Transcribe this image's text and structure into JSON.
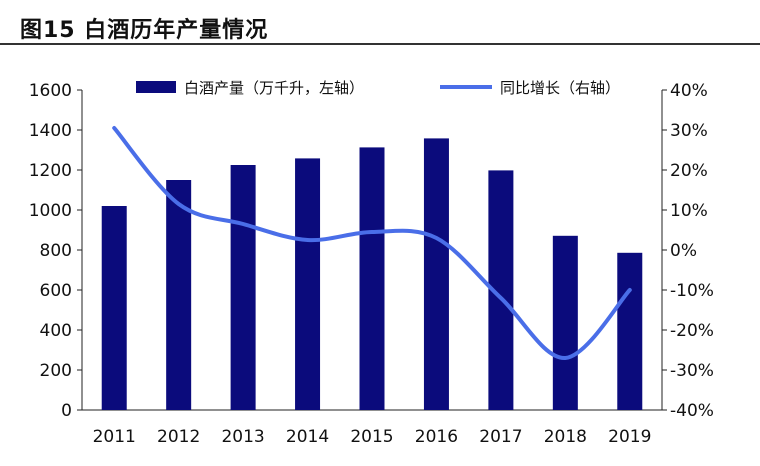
{
  "title": "图15 白酒历年产量情况",
  "chart_data": {
    "type": "bar+line",
    "categories": [
      "2011",
      "2012",
      "2013",
      "2014",
      "2015",
      "2016",
      "2017",
      "2018",
      "2019"
    ],
    "series": [
      {
        "name": "白酒产量（万千升，左轴）",
        "type": "bar",
        "axis": "left",
        "values": [
          1020,
          1150,
          1225,
          1258,
          1313,
          1358,
          1198,
          871,
          786
        ]
      },
      {
        "name": "同比增长（右轴）",
        "type": "line",
        "axis": "right",
        "values": [
          30.5,
          11.5,
          6.5,
          2.5,
          4.5,
          3.0,
          -12.0,
          -27.0,
          -10.0
        ]
      }
    ],
    "y_left": {
      "min": 0,
      "max": 1600,
      "ticks": [
        "0",
        "200",
        "400",
        "600",
        "800",
        "1000",
        "1200",
        "1400",
        "1600"
      ]
    },
    "y_right": {
      "min": -40,
      "max": 40,
      "ticks": [
        "-40%",
        "-30%",
        "-20%",
        "-10%",
        "0%",
        "10%",
        "20%",
        "30%",
        "40%"
      ]
    },
    "colors": {
      "bar": "#0b0b7c",
      "line": "#4a6ee8"
    },
    "legend_position": "top"
  }
}
